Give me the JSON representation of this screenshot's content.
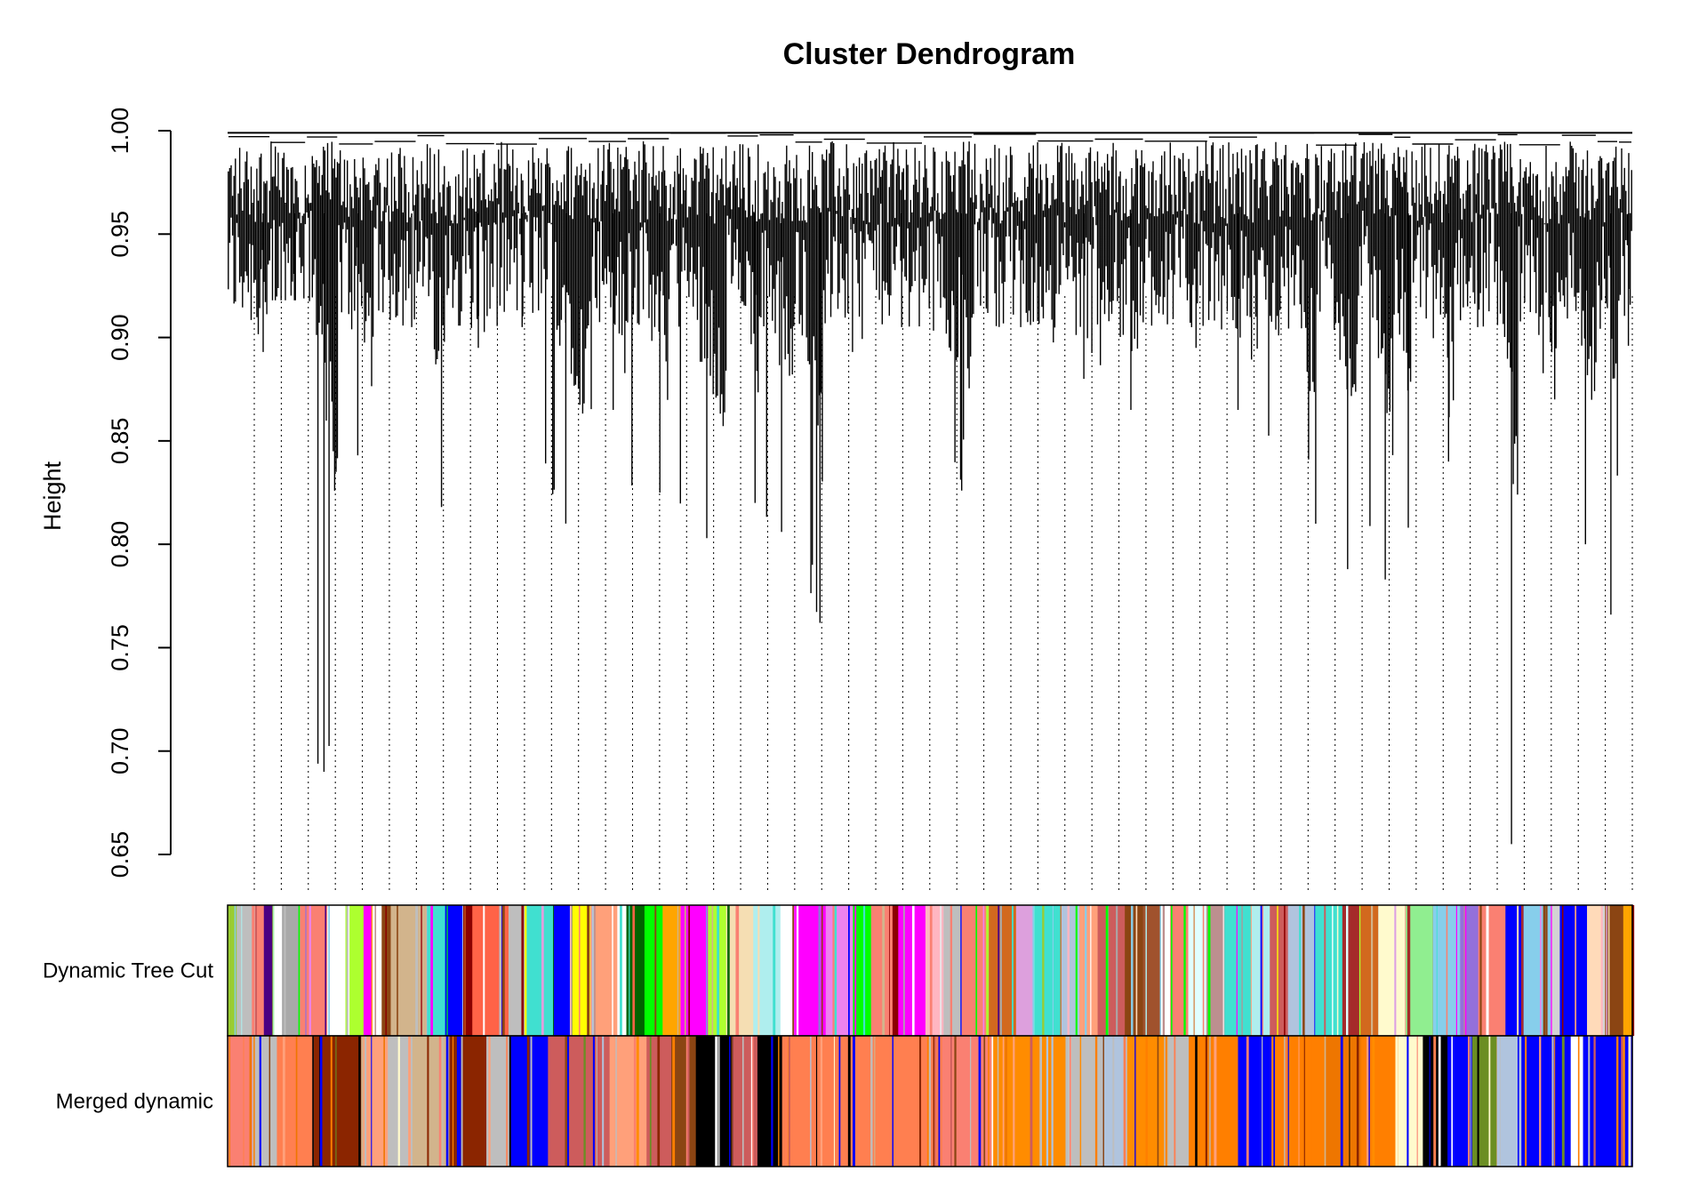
{
  "chart_data": {
    "type": "dendrogram",
    "title": "Cluster Dendrogram",
    "ylabel": "Height",
    "ylim": [
      0.65,
      1.0
    ],
    "yticks": [
      "0.65",
      "0.70",
      "0.75",
      "0.80",
      "0.85",
      "0.90",
      "0.95",
      "1.00"
    ],
    "grid": false,
    "clusters": [
      {
        "height": 0.893,
        "leaves": 60
      },
      {
        "height": 0.918,
        "leaves": 50
      },
      {
        "height": 0.69,
        "leaves": 45
      },
      {
        "height": 0.843,
        "leaves": 50
      },
      {
        "height": 0.905,
        "leaves": 60
      },
      {
        "height": 0.818,
        "leaves": 40
      },
      {
        "height": 0.895,
        "leaves": 70
      },
      {
        "height": 0.905,
        "leaves": 60
      },
      {
        "height": 0.81,
        "leaves": 70
      },
      {
        "height": 0.865,
        "leaves": 55
      },
      {
        "height": 0.825,
        "leaves": 60
      },
      {
        "height": 0.803,
        "leaves": 80
      },
      {
        "height": 0.82,
        "leaves": 45
      },
      {
        "height": 0.806,
        "leaves": 50
      },
      {
        "height": 0.762,
        "leaves": 40
      },
      {
        "height": 0.893,
        "leaves": 60
      },
      {
        "height": 0.905,
        "leaves": 80
      },
      {
        "height": 0.826,
        "leaves": 70
      },
      {
        "height": 0.905,
        "leaves": 90
      },
      {
        "height": 0.88,
        "leaves": 80
      },
      {
        "height": 0.865,
        "leaves": 70
      },
      {
        "height": 0.895,
        "leaves": 90
      },
      {
        "height": 0.865,
        "leaves": 70
      },
      {
        "height": 0.841,
        "leaves": 80
      },
      {
        "height": 0.788,
        "leaves": 60
      },
      {
        "height": 0.783,
        "leaves": 50
      },
      {
        "height": 0.808,
        "leaves": 25
      },
      {
        "height": 0.84,
        "leaves": 60
      },
      {
        "height": 0.905,
        "leaves": 60
      },
      {
        "height": 0.655,
        "leaves": 30
      },
      {
        "height": 0.87,
        "leaves": 60
      },
      {
        "height": 0.8,
        "leaves": 50
      },
      {
        "height": 0.766,
        "leaves": 30
      },
      {
        "height": 0.896,
        "leaves": 20
      }
    ],
    "color_bands": [
      {
        "name": "Dynamic Tree Cut",
        "colors": [
          "#9acd32",
          "#bebebe",
          "#fa8072",
          "#4b0082",
          "#ffffff",
          "#a9a9a9",
          "#fa8072",
          "#ffffff",
          "#adff2f",
          "#ff00ff",
          "#ffffff",
          "#8b4513",
          "#d2b48c",
          "#40e0d0",
          "#0000ff",
          "#8b0000",
          "#ff6347",
          "#bebebe",
          "#40e0d0",
          "#0000ff",
          "#ffff00",
          "#ffa07a",
          "#ffffff",
          "#006400",
          "#00ff00",
          "#ffa500",
          "#ff00ff",
          "#adff2f",
          "#f5deb3",
          "#afeeee",
          "#ffffff",
          "#ff00ff",
          "#ee82ee",
          "#00ff00",
          "#fa8072",
          "#8b0000",
          "#ff00ff",
          "#ffb6c1",
          "#bebebe",
          "#fa8072",
          "#d2691e",
          "#dda0dd",
          "#40e0d0",
          "#b0c4de",
          "#ffa07a",
          "#cd5c5c",
          "#8b4513",
          "#a0522d",
          "#ffffff",
          "#fa8072",
          "#e0ffff",
          "#bc8f8f",
          "#40e0d0",
          "#afeeee",
          "#cd5c5c",
          "#b0c4de",
          "#40e0d0",
          "#a52a2a",
          "#d2691e",
          "#fffacd",
          "#90ee90",
          "#87ceeb",
          "#9370db",
          "#fa8072",
          "#0000ff",
          "#87ceeb",
          "#d3d3d3",
          "#0000ff",
          "#ffdab9",
          "#8b4513",
          "#ffa500"
        ],
        "weights": [
          1,
          2,
          1,
          1,
          1,
          2,
          3,
          2,
          2,
          1,
          1,
          1,
          4,
          2,
          2,
          1,
          4,
          2,
          3,
          2,
          2,
          3,
          1,
          2,
          2,
          2,
          3,
          2,
          3,
          3,
          2,
          3,
          3,
          2,
          2,
          1,
          3,
          2,
          2,
          3,
          3,
          2,
          3,
          2,
          2,
          3,
          2,
          2,
          1,
          2,
          2,
          2,
          3,
          2,
          2,
          3,
          3,
          2,
          2,
          3,
          3,
          3,
          2,
          3,
          2,
          3,
          1,
          3,
          2,
          2,
          1
        ]
      },
      {
        "name": "Merged dynamic",
        "colors": [
          "#fa8072",
          "#bebebe",
          "#ff7f50",
          "#8b2500",
          "#ffa07a",
          "#bebebe",
          "#d2b48c",
          "#8b2500",
          "#bebebe",
          "#0000ff",
          "#cd5c5c",
          "#ffa07a",
          "#cd5c5c",
          "#8b4513",
          "#000000",
          "#cd5c5c",
          "#000000",
          "#ff7f50",
          "#fa8072",
          "#ff8c00",
          "#bebebe",
          "#b0c4de",
          "#ff8c00",
          "#bebebe",
          "#ff7f00",
          "#0000ff",
          "#ff7f00",
          "#ee7600",
          "#ff7f00",
          "#fffacd",
          "#000000",
          "#0000ff",
          "#6b8e23",
          "#b0c4de",
          "#0000ff",
          "#ffffff",
          "#0000ff"
        ],
        "weights": [
          2,
          2,
          3,
          4,
          2,
          2,
          3,
          3,
          2,
          3,
          5,
          3,
          2,
          2,
          3,
          2,
          2,
          13,
          4,
          6,
          3,
          2,
          3,
          2,
          4,
          3,
          4,
          3,
          3,
          2,
          2,
          2,
          2,
          2,
          4,
          1,
          4
        ]
      }
    ]
  }
}
